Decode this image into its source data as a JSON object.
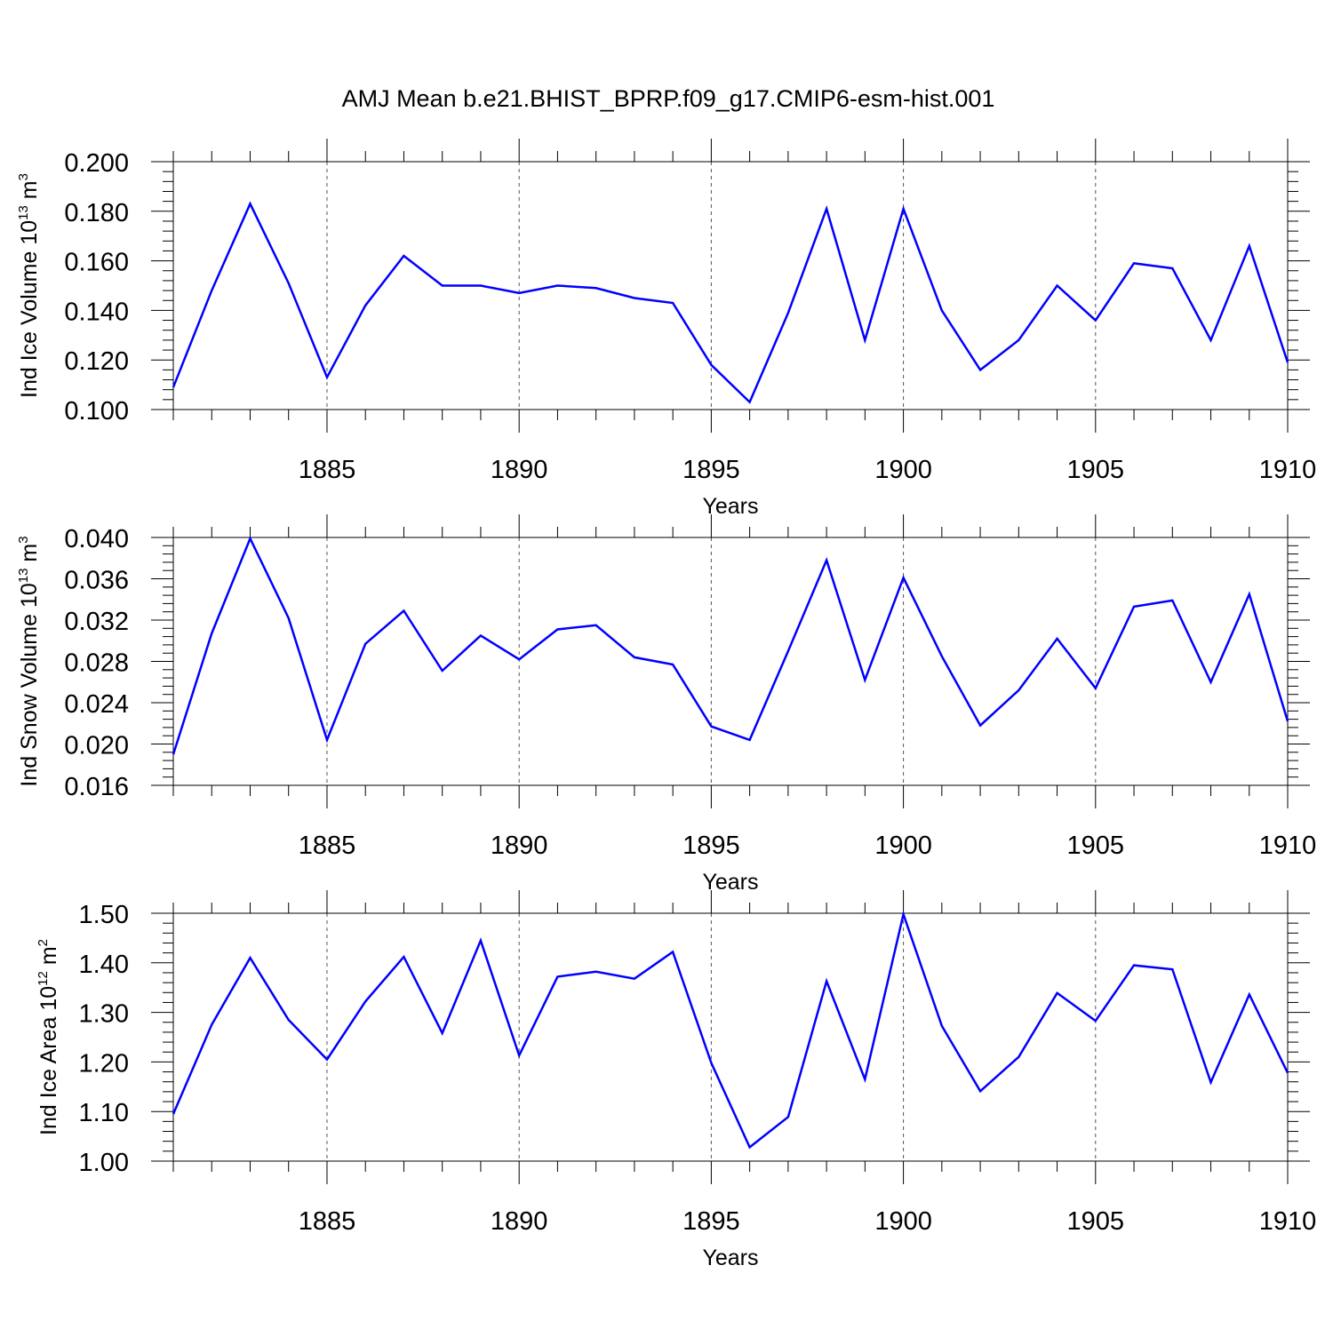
{
  "page_title": "AMJ Mean b.e21.BHIST_BPRP.f09_g17.CMIP6-esm-hist.001",
  "chart_data": [
    {
      "type": "line",
      "ylabel": {
        "text": "Ind Ice Volume 10",
        "sup": "13",
        "unit": " m",
        "unit_sup": "3"
      },
      "xlabel": "Years",
      "xlim": [
        1881,
        1910
      ],
      "ylim": [
        0.1,
        0.2
      ],
      "y_ticks": [
        "0.100",
        "0.120",
        "0.140",
        "0.160",
        "0.180",
        "0.200"
      ],
      "y_tick_values": [
        0.1,
        0.12,
        0.14,
        0.16,
        0.18,
        0.2
      ],
      "x_ticks": [
        "1885",
        "1890",
        "1895",
        "1900",
        "1905",
        "1910"
      ],
      "x_tick_values": [
        1885,
        1890,
        1895,
        1900,
        1905,
        1910
      ],
      "line_color": "#0000ff",
      "grid": "vertical dashed at labeled years",
      "x": [
        1881,
        1882,
        1883,
        1884,
        1885,
        1886,
        1887,
        1888,
        1889,
        1890,
        1891,
        1892,
        1893,
        1894,
        1895,
        1896,
        1897,
        1898,
        1899,
        1900,
        1901,
        1902,
        1903,
        1904,
        1905,
        1906,
        1907,
        1908,
        1909,
        1910
      ],
      "values": [
        0.109,
        0.148,
        0.183,
        0.151,
        0.113,
        0.142,
        0.162,
        0.15,
        0.15,
        0.147,
        0.15,
        0.149,
        0.145,
        0.143,
        0.118,
        0.103,
        0.139,
        0.181,
        0.128,
        0.181,
        0.14,
        0.116,
        0.128,
        0.15,
        0.136,
        0.159,
        0.157,
        0.128,
        0.166,
        0.119
      ]
    },
    {
      "type": "line",
      "ylabel": {
        "text": "Ind Snow Volume 10",
        "sup": "13",
        "unit": " m",
        "unit_sup": "3"
      },
      "xlabel": "Years",
      "xlim": [
        1881,
        1910
      ],
      "ylim": [
        0.016,
        0.04
      ],
      "y_ticks": [
        "0.016",
        "0.020",
        "0.024",
        "0.028",
        "0.032",
        "0.036",
        "0.040"
      ],
      "y_tick_values": [
        0.016,
        0.02,
        0.024,
        0.028,
        0.032,
        0.036,
        0.04
      ],
      "x_ticks": [
        "1885",
        "1890",
        "1895",
        "1900",
        "1905",
        "1910"
      ],
      "x_tick_values": [
        1885,
        1890,
        1895,
        1900,
        1905,
        1910
      ],
      "line_color": "#0000ff",
      "grid": "vertical dashed at labeled years",
      "x": [
        1881,
        1882,
        1883,
        1884,
        1885,
        1886,
        1887,
        1888,
        1889,
        1890,
        1891,
        1892,
        1893,
        1894,
        1895,
        1896,
        1897,
        1898,
        1899,
        1900,
        1901,
        1902,
        1903,
        1904,
        1905,
        1906,
        1907,
        1908,
        1909,
        1910
      ],
      "values": [
        0.019,
        0.0307,
        0.0399,
        0.0322,
        0.0204,
        0.0297,
        0.0329,
        0.0271,
        0.0305,
        0.0282,
        0.0311,
        0.0315,
        0.0284,
        0.0277,
        0.0217,
        0.0204,
        0.029,
        0.0378,
        0.0262,
        0.0361,
        0.0285,
        0.0218,
        0.0252,
        0.0302,
        0.0254,
        0.0333,
        0.0339,
        0.026,
        0.0345,
        0.0222
      ]
    },
    {
      "type": "line",
      "ylabel": {
        "text": "Ind Ice Area 10",
        "sup": "12",
        "unit": " m",
        "unit_sup": "2"
      },
      "xlabel": "Years",
      "xlim": [
        1881,
        1910
      ],
      "ylim": [
        1.0,
        1.5
      ],
      "y_ticks": [
        "1.00",
        "1.10",
        "1.20",
        "1.30",
        "1.40",
        "1.50"
      ],
      "y_tick_values": [
        1.0,
        1.1,
        1.2,
        1.3,
        1.4,
        1.5
      ],
      "x_ticks": [
        "1885",
        "1890",
        "1895",
        "1900",
        "1905",
        "1910"
      ],
      "x_tick_values": [
        1885,
        1890,
        1895,
        1900,
        1905,
        1910
      ],
      "line_color": "#0000ff",
      "grid": "vertical dashed at labeled years",
      "x": [
        1881,
        1882,
        1883,
        1884,
        1885,
        1886,
        1887,
        1888,
        1889,
        1890,
        1891,
        1892,
        1893,
        1894,
        1895,
        1896,
        1897,
        1898,
        1899,
        1900,
        1901,
        1902,
        1903,
        1904,
        1905,
        1906,
        1907,
        1908,
        1909,
        1910
      ],
      "values": [
        1.095,
        1.275,
        1.41,
        1.285,
        1.205,
        1.322,
        1.412,
        1.258,
        1.445,
        1.213,
        1.372,
        1.382,
        1.368,
        1.422,
        1.198,
        1.028,
        1.089,
        1.363,
        1.165,
        1.498,
        1.273,
        1.141,
        1.21,
        1.339,
        1.283,
        1.395,
        1.387,
        1.159,
        1.336,
        1.178
      ]
    }
  ]
}
